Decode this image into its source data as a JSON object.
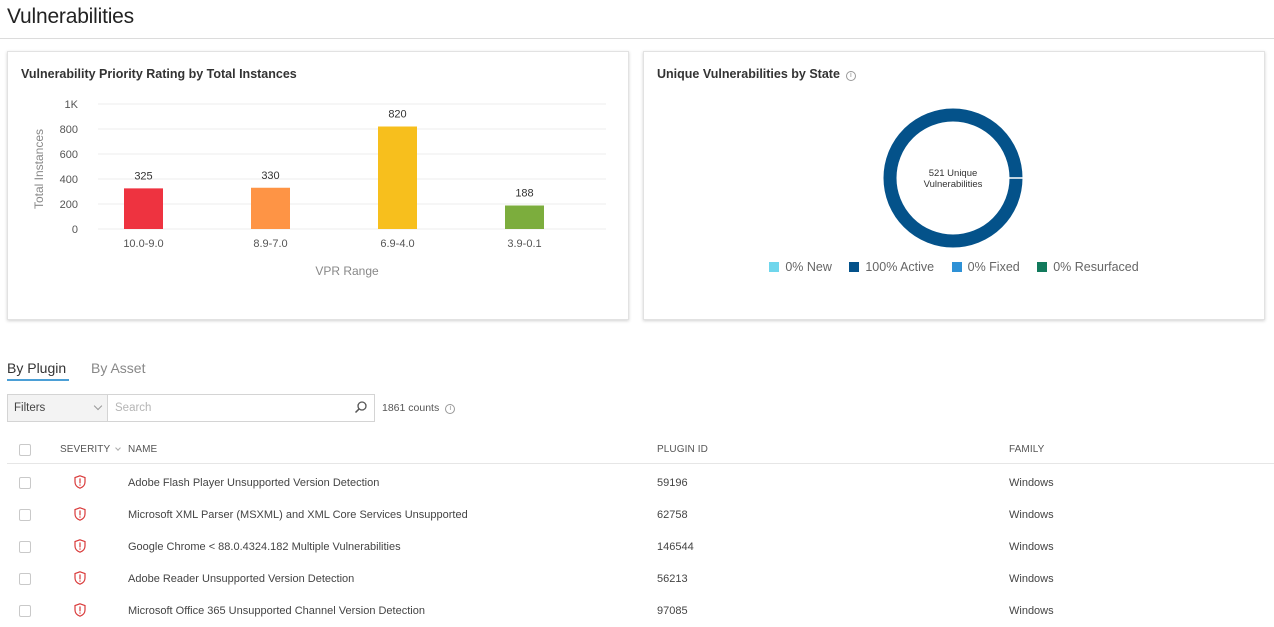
{
  "page": {
    "title": "Vulnerabilities"
  },
  "vpr_card": {
    "title": "Vulnerability Priority Rating by Total Instances"
  },
  "state_card": {
    "title": "Unique Vulnerabilities by State",
    "center_line1": "521 Unique",
    "center_line2": "Vulnerabilities",
    "legend": [
      {
        "label": "0% New",
        "color": "#6fd6ec"
      },
      {
        "label": "100% Active",
        "color": "#04528a"
      },
      {
        "label": "0% Fixed",
        "color": "#2e91d6"
      },
      {
        "label": "0% Resurfaced",
        "color": "#127a5c"
      }
    ]
  },
  "chart_data": [
    {
      "type": "bar",
      "title": "Vulnerability Priority Rating by Total Instances",
      "xlabel": "VPR Range",
      "ylabel": "Total Instances",
      "categories": [
        "10.0-9.0",
        "8.9-7.0",
        "6.9-4.0",
        "3.9-0.1"
      ],
      "values": [
        325,
        330,
        820,
        188
      ],
      "colors": [
        "#ee3340",
        "#fe9445",
        "#f7bf1d",
        "#7cad3d"
      ],
      "ylim": [
        0,
        1000
      ],
      "yticks": [
        0,
        200,
        400,
        600,
        800,
        1000
      ],
      "ytick_labels": [
        "0",
        "200",
        "400",
        "600",
        "800",
        "1K"
      ],
      "grid": true
    },
    {
      "type": "pie",
      "title": "Unique Vulnerabilities by State",
      "categories": [
        "New",
        "Active",
        "Fixed",
        "Resurfaced"
      ],
      "values": [
        0,
        100,
        0,
        0
      ],
      "colors": [
        "#6fd6ec",
        "#04528a",
        "#2e91d6",
        "#127a5c"
      ],
      "donut": true,
      "legend": "bottom"
    }
  ],
  "tabs": [
    {
      "label": "By Plugin",
      "active": true
    },
    {
      "label": "By Asset",
      "active": false
    }
  ],
  "filters": {
    "filters_label": "Filters",
    "search_placeholder": "Search",
    "counts_text": "1861 counts"
  },
  "table": {
    "headers": {
      "severity": "Severity",
      "name": "Name",
      "plugin_id": "Plugin ID",
      "family": "Family"
    },
    "severity_icon": "shield-icon",
    "rows": [
      {
        "name": "Adobe Flash Player Unsupported Version Detection",
        "plugin_id": "59196",
        "family": "Windows"
      },
      {
        "name": "Microsoft XML Parser (MSXML) and XML Core Services Unsupported",
        "plugin_id": "62758",
        "family": "Windows"
      },
      {
        "name": "Google Chrome < 88.0.4324.182 Multiple Vulnerabilities",
        "plugin_id": "146544",
        "family": "Windows"
      },
      {
        "name": "Adobe Reader Unsupported Version Detection",
        "plugin_id": "56213",
        "family": "Windows"
      },
      {
        "name": "Microsoft Office 365 Unsupported Channel Version Detection",
        "plugin_id": "97085",
        "family": "Windows"
      }
    ]
  }
}
